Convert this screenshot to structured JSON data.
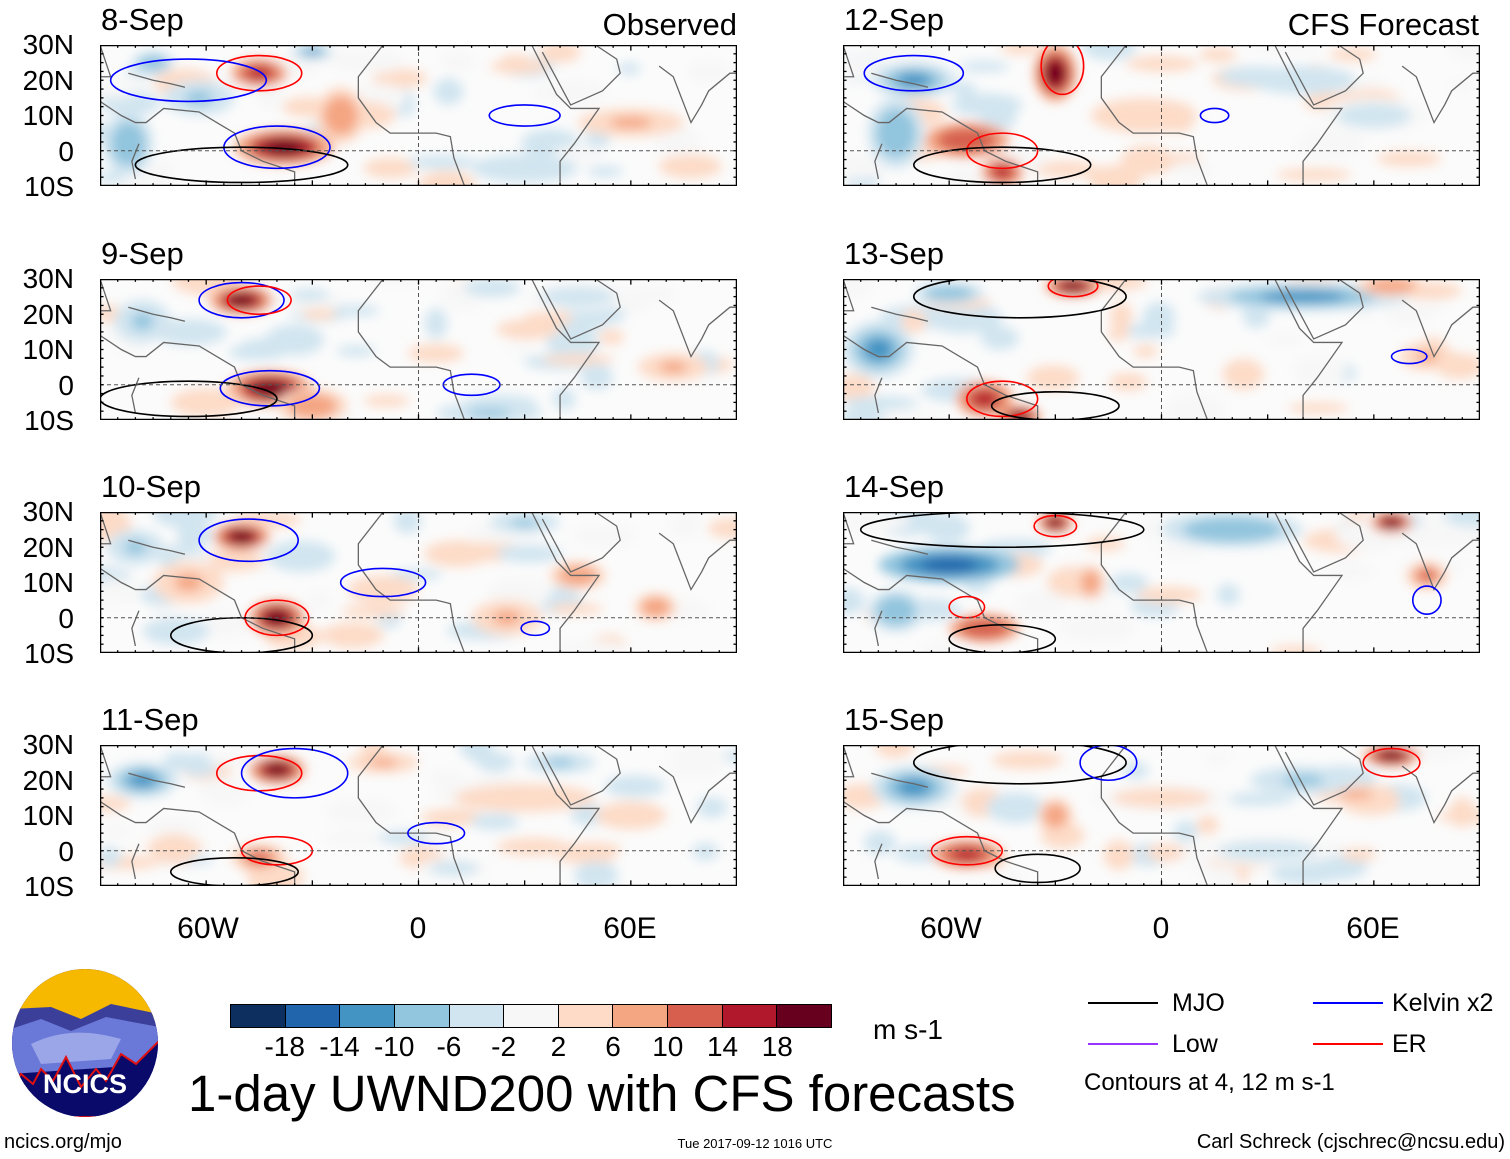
{
  "headers": {
    "left": "Observed",
    "right": "CFS Forecast"
  },
  "panels": [
    {
      "date": "8-Sep",
      "column": "observed"
    },
    {
      "date": "9-Sep",
      "column": "observed"
    },
    {
      "date": "10-Sep",
      "column": "observed"
    },
    {
      "date": "11-Sep",
      "column": "observed"
    },
    {
      "date": "12-Sep",
      "column": "forecast"
    },
    {
      "date": "13-Sep",
      "column": "forecast"
    },
    {
      "date": "14-Sep",
      "column": "forecast"
    },
    {
      "date": "15-Sep",
      "column": "forecast"
    }
  ],
  "lat_ticks": [
    "30N",
    "20N",
    "10N",
    "0",
    "10S"
  ],
  "lon_ticks": [
    "60W",
    "0",
    "60E"
  ],
  "colorbar": {
    "labels": [
      "-18",
      "-14",
      "-10",
      "-6",
      "-2",
      "2",
      "6",
      "10",
      "14",
      "18"
    ],
    "colors": [
      "#0c2f60",
      "#2166ac",
      "#4393c3",
      "#92c5de",
      "#d1e5f0",
      "#f7f7f7",
      "#fddbc7",
      "#f4a582",
      "#d6604d",
      "#b2182b",
      "#67001f"
    ],
    "units": "m s-1"
  },
  "legend": {
    "items": [
      {
        "label": "MJO",
        "color": "#000000"
      },
      {
        "label": "Low",
        "color": "#9933ff"
      },
      {
        "label": "Kelvin x2",
        "color": "#0000ff"
      },
      {
        "label": "ER",
        "color": "#ff0000"
      }
    ],
    "contours_note": "Contours at 4, 12 m s-1"
  },
  "title": "1-day UWND200 with CFS forecasts",
  "logo_text": "NCICS",
  "footer": {
    "url": "ncics.org/mjo",
    "timestamp": "Tue 2017-09-12 1016 UTC",
    "credit": "Carl Schreck (cjschrec@ncsu.edu)"
  }
}
